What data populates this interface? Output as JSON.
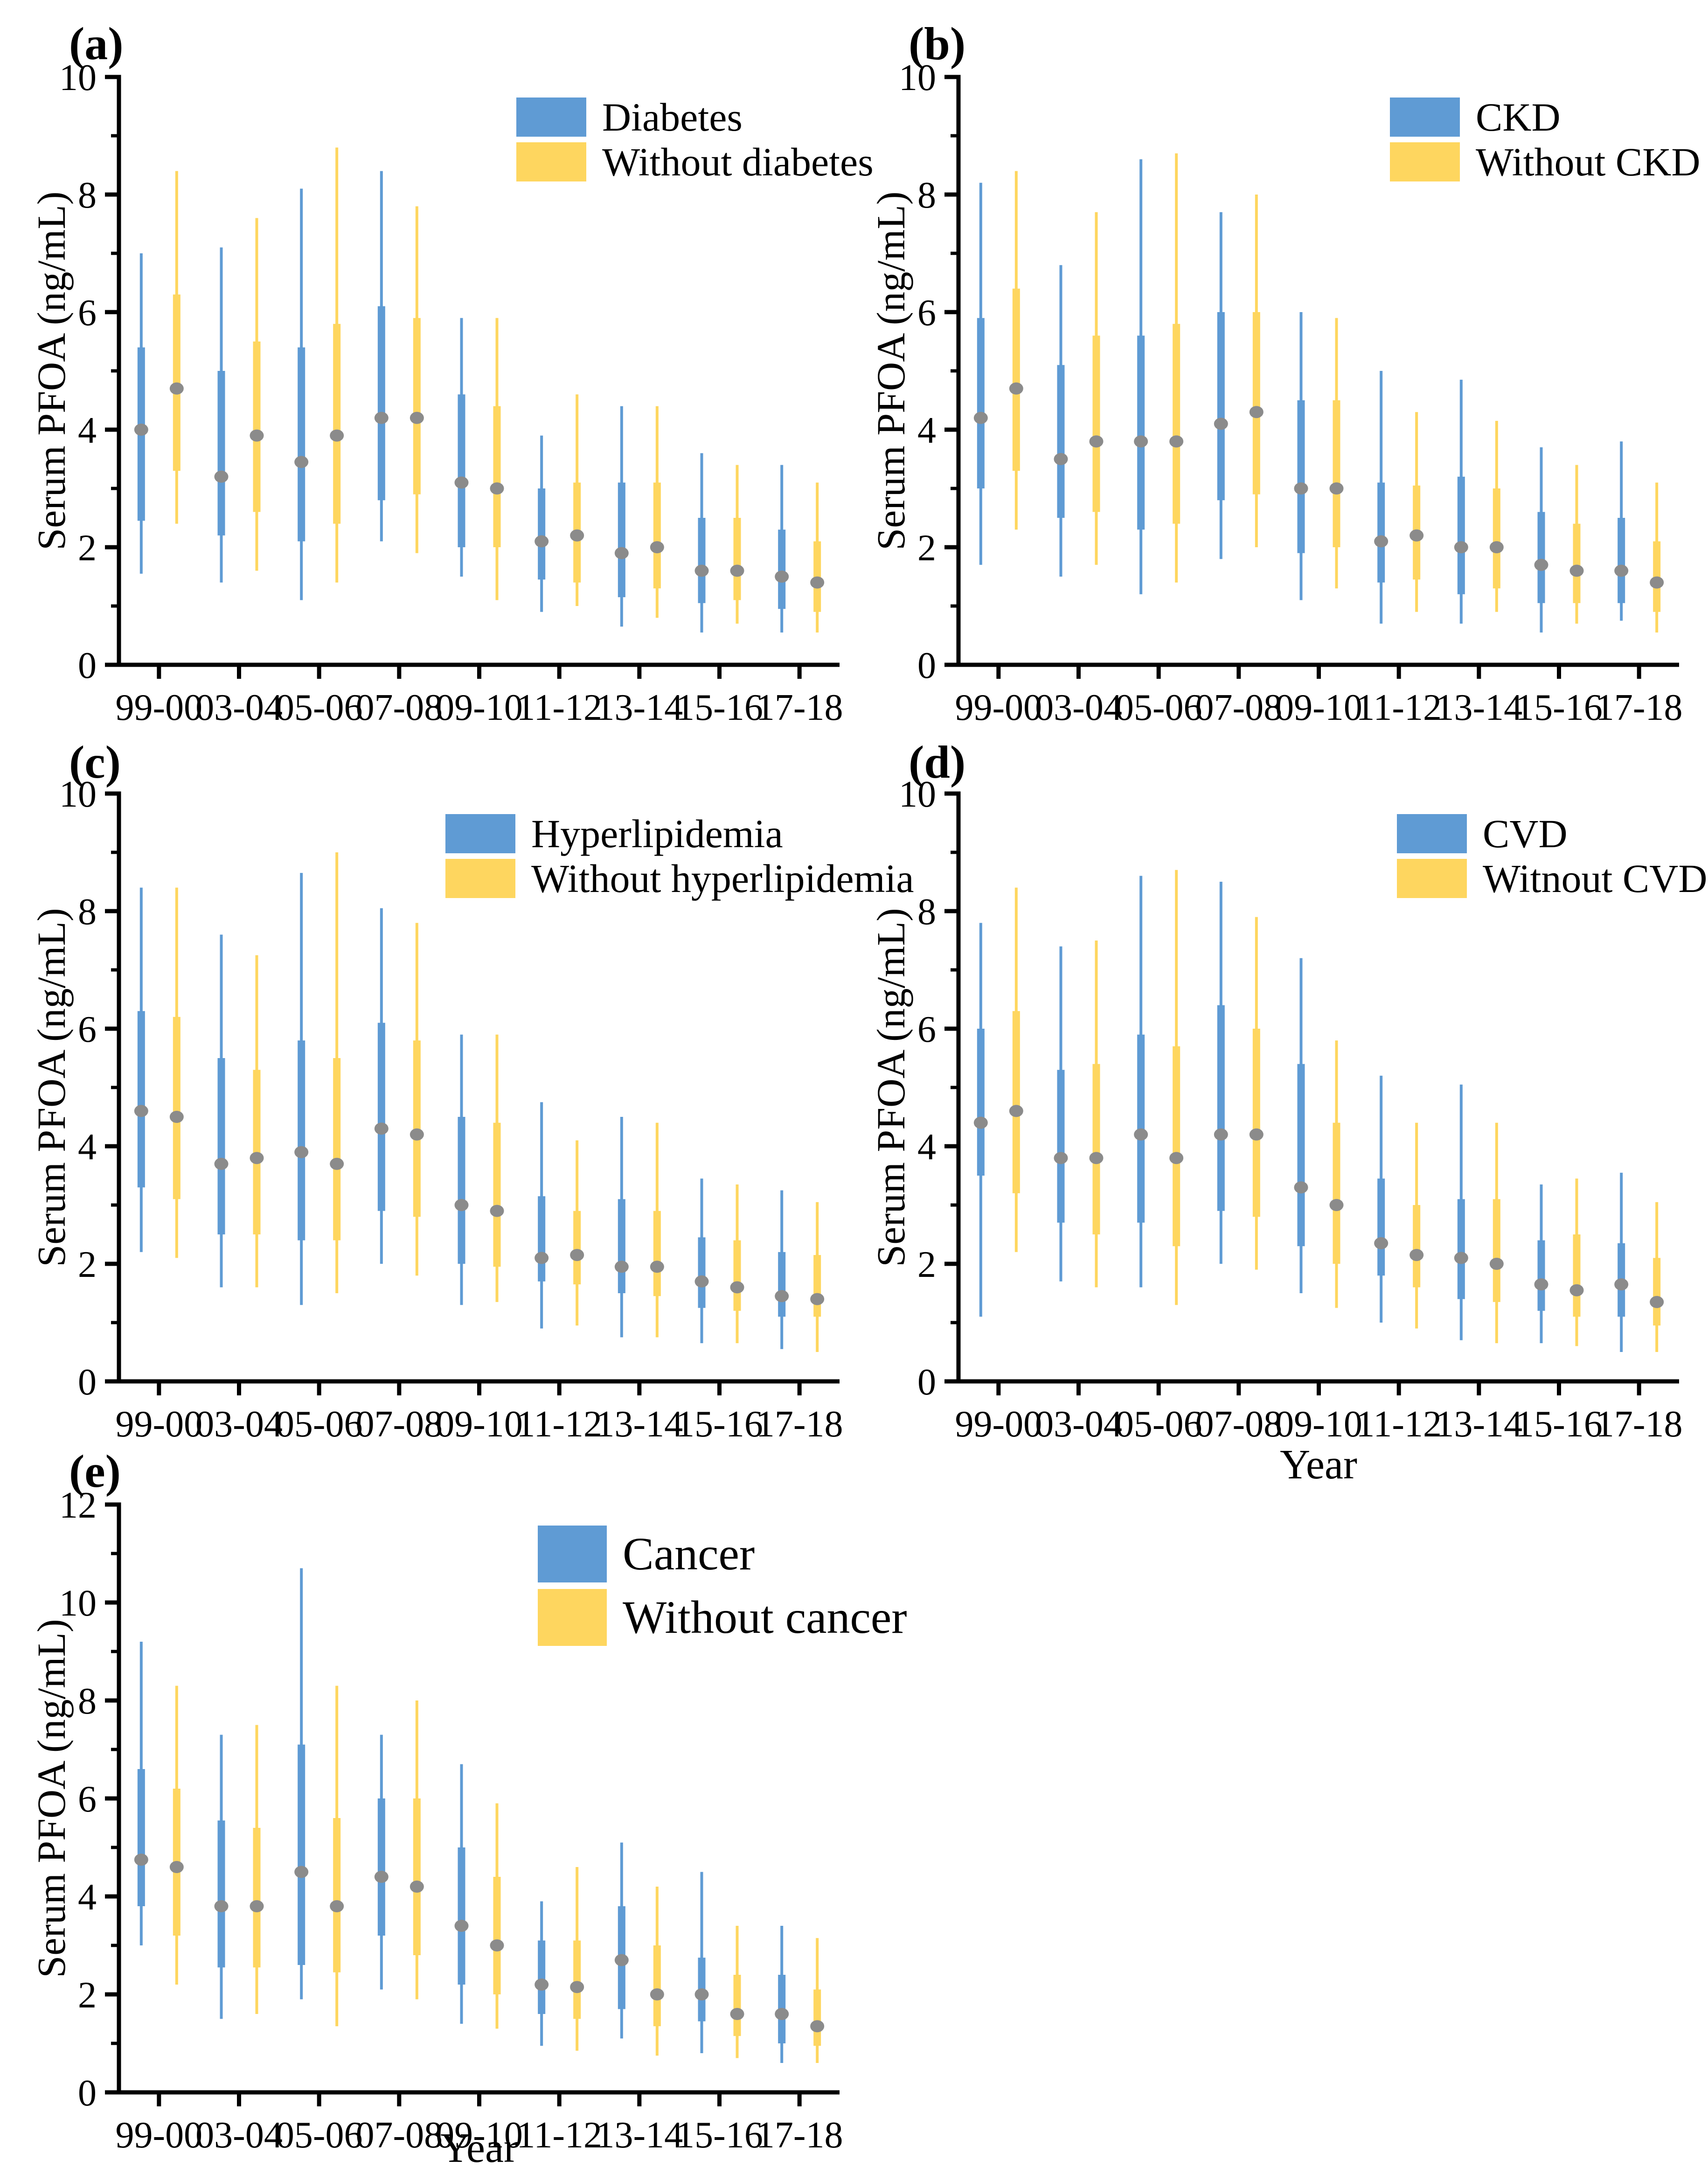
{
  "figure_title": "Serum PFOA percentile plots by survey cycle and disease status",
  "colors": {
    "blue": "#5F9BD4",
    "yellow": "#FED65F",
    "median_dot": "#8B8B8B",
    "axis": "#000000",
    "background": "#ffffff"
  },
  "chart_data": [
    {
      "type": "box",
      "panel": "(a)",
      "ylabel": "Serum PFOA (ng/mL)",
      "xlabel": "",
      "ylim": [
        0,
        10
      ],
      "yticks": [
        0,
        2,
        4,
        6,
        8,
        10
      ],
      "grid": false,
      "legend_position": "top-inside",
      "categories": [
        "99-00",
        "03-04",
        "05-06",
        "07-08",
        "09-10",
        "11-12",
        "13-14",
        "15-16",
        "17-18"
      ],
      "legend": [
        {
          "label": "Diabetes",
          "color_key": "blue"
        },
        {
          "label": "Without diabetes",
          "color_key": "yellow"
        }
      ],
      "series": [
        {
          "name": "Diabetes",
          "color_key": "blue",
          "values": [
            [
              1.55,
              2.45,
              4.0,
              5.4,
              7.0
            ],
            [
              1.4,
              2.2,
              3.2,
              5.0,
              7.1
            ],
            [
              1.1,
              2.1,
              3.45,
              5.4,
              8.1
            ],
            [
              2.1,
              2.8,
              4.2,
              6.1,
              8.4
            ],
            [
              1.5,
              2.0,
              3.1,
              4.6,
              5.9
            ],
            [
              0.9,
              1.45,
              2.1,
              3.0,
              3.9
            ],
            [
              0.65,
              1.15,
              1.9,
              3.1,
              4.4
            ],
            [
              0.55,
              1.05,
              1.6,
              2.5,
              3.6
            ],
            [
              0.55,
              0.95,
              1.5,
              2.3,
              3.4
            ]
          ]
        },
        {
          "name": "Without diabetes",
          "color_key": "yellow",
          "values": [
            [
              2.4,
              3.3,
              4.7,
              6.3,
              8.4
            ],
            [
              1.6,
              2.6,
              3.9,
              5.5,
              7.6
            ],
            [
              1.4,
              2.4,
              3.9,
              5.8,
              8.8
            ],
            [
              1.9,
              2.9,
              4.2,
              5.9,
              7.8
            ],
            [
              1.1,
              2.0,
              3.0,
              4.4,
              5.9
            ],
            [
              1.0,
              1.4,
              2.2,
              3.1,
              4.6
            ],
            [
              0.8,
              1.3,
              2.0,
              3.1,
              4.4
            ],
            [
              0.7,
              1.1,
              1.6,
              2.5,
              3.4
            ],
            [
              0.55,
              0.9,
              1.4,
              2.1,
              3.1
            ]
          ]
        }
      ]
    },
    {
      "type": "box",
      "panel": "(b)",
      "ylabel": "Serum PFOA (ng/mL)",
      "xlabel": "",
      "ylim": [
        0,
        10
      ],
      "yticks": [
        0,
        2,
        4,
        6,
        8,
        10
      ],
      "grid": false,
      "legend_position": "top-inside",
      "categories": [
        "99-00",
        "03-04",
        "05-06",
        "07-08",
        "09-10",
        "11-12",
        "13-14",
        "15-16",
        "17-18"
      ],
      "legend": [
        {
          "label": "CKD",
          "color_key": "blue"
        },
        {
          "label": "Without CKD",
          "color_key": "yellow"
        }
      ],
      "series": [
        {
          "name": "CKD",
          "color_key": "blue",
          "values": [
            [
              1.7,
              3.0,
              4.2,
              5.9,
              8.2
            ],
            [
              1.5,
              2.5,
              3.5,
              5.1,
              6.8
            ],
            [
              1.2,
              2.3,
              3.8,
              5.6,
              8.6
            ],
            [
              1.8,
              2.8,
              4.1,
              6.0,
              7.7
            ],
            [
              1.1,
              1.9,
              3.0,
              4.5,
              6.0
            ],
            [
              0.7,
              1.4,
              2.1,
              3.1,
              5.0
            ],
            [
              0.7,
              1.2,
              2.0,
              3.2,
              4.85
            ],
            [
              0.55,
              1.05,
              1.7,
              2.6,
              3.7
            ],
            [
              0.75,
              1.05,
              1.6,
              2.5,
              3.8
            ]
          ]
        },
        {
          "name": "Without CKD",
          "color_key": "yellow",
          "values": [
            [
              2.3,
              3.3,
              4.7,
              6.4,
              8.4
            ],
            [
              1.7,
              2.6,
              3.8,
              5.6,
              7.7
            ],
            [
              1.4,
              2.4,
              3.8,
              5.8,
              8.7
            ],
            [
              2.0,
              2.9,
              4.3,
              6.0,
              8.0
            ],
            [
              1.3,
              2.0,
              3.0,
              4.5,
              5.9
            ],
            [
              0.9,
              1.45,
              2.2,
              3.05,
              4.3
            ],
            [
              0.9,
              1.3,
              2.0,
              3.0,
              4.15
            ],
            [
              0.7,
              1.05,
              1.6,
              2.4,
              3.4
            ],
            [
              0.55,
              0.9,
              1.4,
              2.1,
              3.1
            ]
          ]
        }
      ]
    },
    {
      "type": "box",
      "panel": "(c)",
      "ylabel": "Serum PFOA (ng/mL)",
      "xlabel": "",
      "ylim": [
        0,
        10
      ],
      "yticks": [
        0,
        2,
        4,
        6,
        8,
        10
      ],
      "grid": false,
      "legend_position": "top-inside",
      "categories": [
        "99-00",
        "03-04",
        "05-06",
        "07-08",
        "09-10",
        "11-12",
        "13-14",
        "15-16",
        "17-18"
      ],
      "legend": [
        {
          "label": "Hyperlipidemia",
          "color_key": "blue"
        },
        {
          "label": "Without hyperlipidemia",
          "color_key": "yellow"
        }
      ],
      "series": [
        {
          "name": "Hyperlipidemia",
          "color_key": "blue",
          "values": [
            [
              2.2,
              3.3,
              4.6,
              6.3,
              8.4
            ],
            [
              1.6,
              2.5,
              3.7,
              5.5,
              7.6
            ],
            [
              1.3,
              2.4,
              3.9,
              5.8,
              8.65
            ],
            [
              2.0,
              2.9,
              4.3,
              6.1,
              8.05
            ],
            [
              1.3,
              2.0,
              3.0,
              4.5,
              5.9
            ],
            [
              0.9,
              1.7,
              2.1,
              3.15,
              4.75
            ],
            [
              0.75,
              1.5,
              1.95,
              3.1,
              4.5
            ],
            [
              0.65,
              1.25,
              1.7,
              2.45,
              3.45
            ],
            [
              0.55,
              1.1,
              1.45,
              2.2,
              3.25
            ]
          ]
        },
        {
          "name": "Without hyperlipidemia",
          "color_key": "yellow",
          "values": [
            [
              2.1,
              3.1,
              4.5,
              6.2,
              8.4
            ],
            [
              1.6,
              2.5,
              3.8,
              5.3,
              7.25
            ],
            [
              1.5,
              2.4,
              3.7,
              5.5,
              9.0
            ],
            [
              1.8,
              2.8,
              4.2,
              5.8,
              7.8
            ],
            [
              1.35,
              1.95,
              2.9,
              4.4,
              5.9
            ],
            [
              0.95,
              1.65,
              2.15,
              2.9,
              4.1
            ],
            [
              0.75,
              1.45,
              1.95,
              2.9,
              4.4
            ],
            [
              0.65,
              1.2,
              1.6,
              2.4,
              3.35
            ],
            [
              0.5,
              1.1,
              1.4,
              2.15,
              3.05
            ]
          ]
        }
      ]
    },
    {
      "type": "box",
      "panel": "(d)",
      "ylabel": "Serum PFOA (ng/mL)",
      "xlabel": "Year",
      "ylim": [
        0,
        10
      ],
      "yticks": [
        0,
        2,
        4,
        6,
        8,
        10
      ],
      "grid": false,
      "legend_position": "top-inside",
      "categories": [
        "99-00",
        "03-04",
        "05-06",
        "07-08",
        "09-10",
        "11-12",
        "13-14",
        "15-16",
        "17-18"
      ],
      "legend": [
        {
          "label": "CVD",
          "color_key": "blue"
        },
        {
          "label": "Witnout CVD",
          "color_key": "yellow"
        }
      ],
      "series": [
        {
          "name": "CVD",
          "color_key": "blue",
          "values": [
            [
              1.1,
              3.5,
              4.4,
              6.0,
              7.8
            ],
            [
              1.7,
              2.7,
              3.8,
              5.3,
              7.4
            ],
            [
              1.6,
              2.7,
              4.2,
              5.9,
              8.6
            ],
            [
              2.0,
              2.9,
              4.2,
              6.4,
              8.5
            ],
            [
              1.5,
              2.3,
              3.3,
              5.4,
              7.2
            ],
            [
              1.0,
              1.8,
              2.35,
              3.45,
              5.2
            ],
            [
              0.7,
              1.4,
              2.1,
              3.1,
              5.05
            ],
            [
              0.65,
              1.2,
              1.65,
              2.4,
              3.35
            ],
            [
              0.5,
              1.1,
              1.65,
              2.35,
              3.55
            ]
          ]
        },
        {
          "name": "Witnout CVD",
          "color_key": "yellow",
          "values": [
            [
              2.2,
              3.2,
              4.6,
              6.3,
              8.4
            ],
            [
              1.6,
              2.5,
              3.8,
              5.4,
              7.5
            ],
            [
              1.3,
              2.3,
              3.8,
              5.7,
              8.7
            ],
            [
              1.9,
              2.8,
              4.2,
              6.0,
              7.9
            ],
            [
              1.25,
              2.0,
              3.0,
              4.4,
              5.8
            ],
            [
              0.9,
              1.6,
              2.15,
              3.0,
              4.4
            ],
            [
              0.65,
              1.35,
              2.0,
              3.1,
              4.4
            ],
            [
              0.6,
              1.1,
              1.55,
              2.5,
              3.45
            ],
            [
              0.5,
              0.95,
              1.35,
              2.1,
              3.05
            ]
          ]
        }
      ]
    },
    {
      "type": "box",
      "panel": "(e)",
      "ylabel": "Serum PFOA (ng/mL)",
      "xlabel": "Year",
      "ylim": [
        0,
        12
      ],
      "yticks": [
        0,
        2,
        4,
        6,
        8,
        10,
        12
      ],
      "grid": false,
      "legend_position": "top-inside",
      "categories": [
        "99-00",
        "03-04",
        "05-06",
        "07-08",
        "09-10",
        "11-12",
        "13-14",
        "15-16",
        "17-18"
      ],
      "legend": [
        {
          "label": "Cancer",
          "color_key": "blue"
        },
        {
          "label": "Without cancer",
          "color_key": "yellow"
        }
      ],
      "series": [
        {
          "name": "Cancer",
          "color_key": "blue",
          "values": [
            [
              3.0,
              3.8,
              4.75,
              6.6,
              9.2
            ],
            [
              1.5,
              2.55,
              3.8,
              5.55,
              7.3
            ],
            [
              1.9,
              2.6,
              4.5,
              7.1,
              10.7
            ],
            [
              2.1,
              3.2,
              4.4,
              6.0,
              7.3
            ],
            [
              1.4,
              2.2,
              3.4,
              5.0,
              6.7
            ],
            [
              0.95,
              1.6,
              2.2,
              3.1,
              3.9
            ],
            [
              1.1,
              1.7,
              2.7,
              3.8,
              5.1
            ],
            [
              0.8,
              1.45,
              2.0,
              2.75,
              4.5
            ],
            [
              0.6,
              1.0,
              1.6,
              2.4,
              3.4
            ]
          ]
        },
        {
          "name": "Without cancer",
          "color_key": "yellow",
          "values": [
            [
              2.2,
              3.2,
              4.6,
              6.2,
              8.3
            ],
            [
              1.6,
              2.55,
              3.8,
              5.4,
              7.5
            ],
            [
              1.35,
              2.45,
              3.8,
              5.6,
              8.3
            ],
            [
              1.9,
              2.8,
              4.2,
              6.0,
              8.0
            ],
            [
              1.3,
              2.0,
              3.0,
              4.4,
              5.9
            ],
            [
              0.85,
              1.5,
              2.15,
              3.1,
              4.6
            ],
            [
              0.75,
              1.35,
              2.0,
              3.0,
              4.2
            ],
            [
              0.7,
              1.15,
              1.6,
              2.4,
              3.4
            ],
            [
              0.6,
              0.95,
              1.35,
              2.1,
              3.15
            ]
          ]
        }
      ]
    }
  ]
}
